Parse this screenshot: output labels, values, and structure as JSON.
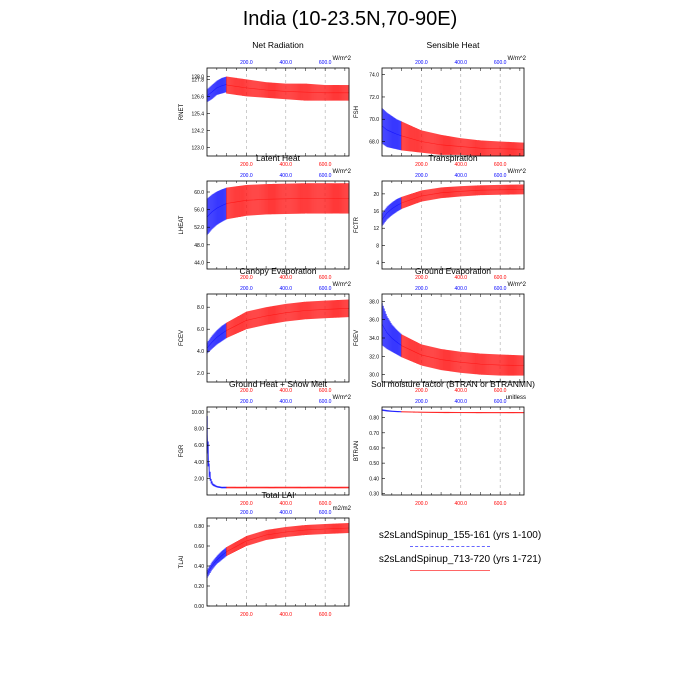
{
  "title": "India (10-23.5N,70-90E)",
  "colors": {
    "blue": "#0000ff",
    "red": "#ff0000",
    "grid": "#aaaaaa"
  },
  "legend": [
    {
      "label": "s2sLandSpinup_155-161 (yrs 1-100)",
      "color": "#6666ff"
    },
    {
      "label": "s2sLandSpinup_713-720 (yrs 1-721)",
      "color": "#ff6666"
    }
  ],
  "chart_data": [
    {
      "type": "line",
      "title": "Net Radiation",
      "unit": "W/m^2",
      "ylabel": "RNET",
      "top_ticks": [
        "200.0",
        "400.0",
        "600.0"
      ],
      "bottom_ticks": [
        "200.0",
        "400.0",
        "600.0"
      ],
      "yticks": [
        "123.0",
        "124.2",
        "125.4",
        "126.6",
        "127.8",
        "128.0"
      ],
      "xlim": [
        0,
        721
      ],
      "ylim": [
        122.4,
        128.6
      ],
      "series": [
        {
          "color": "blue",
          "x": [
            1,
            25,
            50,
            75,
            100
          ],
          "low": [
            126.2,
            126.4,
            126.7,
            126.8,
            126.9
          ],
          "high": [
            127.1,
            127.4,
            127.7,
            127.9,
            128.0
          ]
        },
        {
          "color": "red",
          "x": [
            100,
            200,
            300,
            400,
            500,
            600,
            721
          ],
          "low": [
            126.8,
            126.6,
            126.5,
            126.4,
            126.3,
            126.3,
            126.3
          ],
          "high": [
            128.0,
            127.8,
            127.6,
            127.5,
            127.5,
            127.4,
            127.4
          ]
        }
      ]
    },
    {
      "type": "line",
      "title": "Sensible Heat",
      "unit": "W/m^2",
      "ylabel": "FSH",
      "top_ticks": [
        "200.0",
        "400.0",
        "600.0"
      ],
      "bottom_ticks": [
        "200.0",
        "400.0",
        "600.0"
      ],
      "yticks": [
        "68.0",
        "70.0",
        "72.0",
        "74.0"
      ],
      "xlim": [
        0,
        721
      ],
      "ylim": [
        66.7,
        74.6
      ],
      "series": [
        {
          "color": "blue",
          "x": [
            1,
            25,
            50,
            75,
            100
          ],
          "low": [
            67.8,
            67.5,
            67.4,
            67.3,
            67.2
          ],
          "high": [
            71.0,
            70.6,
            70.3,
            70.0,
            69.8
          ]
        },
        {
          "color": "red",
          "x": [
            100,
            200,
            300,
            400,
            500,
            600,
            721
          ],
          "low": [
            67.2,
            67.0,
            66.8,
            66.8,
            66.7,
            66.7,
            66.7
          ],
          "high": [
            69.8,
            69.0,
            68.6,
            68.3,
            68.1,
            68.0,
            67.9
          ]
        }
      ]
    },
    {
      "type": "line",
      "title": "Latent Heat",
      "unit": "W/m^2",
      "ylabel": "LHEAT",
      "top_ticks": [
        "200.0",
        "400.0",
        "600.0"
      ],
      "bottom_ticks": [
        "200.0",
        "400.0",
        "600.0"
      ],
      "yticks": [
        "44.0",
        "48.0",
        "52.0",
        "56.0",
        "60.0"
      ],
      "xlim": [
        0,
        721
      ],
      "ylim": [
        42.5,
        62.5
      ],
      "series": [
        {
          "color": "blue",
          "x": [
            1,
            25,
            50,
            75,
            100
          ],
          "low": [
            50.2,
            51.5,
            52.5,
            53.2,
            53.8
          ],
          "high": [
            58.5,
            59.4,
            60.1,
            60.6,
            61.0
          ]
        },
        {
          "color": "red",
          "x": [
            100,
            200,
            300,
            400,
            500,
            600,
            721
          ],
          "low": [
            53.8,
            54.6,
            54.9,
            55.0,
            55.1,
            55.1,
            55.1
          ],
          "high": [
            61.0,
            61.6,
            61.8,
            61.9,
            62.0,
            62.0,
            62.0
          ]
        }
      ]
    },
    {
      "type": "line",
      "title": "Transpiration",
      "unit": "W/m^2",
      "ylabel": "FCTR",
      "top_ticks": [
        "200.0",
        "400.0",
        "600.0"
      ],
      "bottom_ticks": [
        "200.0",
        "400.0",
        "600.0"
      ],
      "yticks": [
        "4",
        "8",
        "12",
        "16",
        "20"
      ],
      "xlim": [
        0,
        721
      ],
      "ylim": [
        2.5,
        23
      ],
      "series": [
        {
          "color": "blue",
          "x": [
            1,
            25,
            50,
            75,
            100
          ],
          "low": [
            12.5,
            14.0,
            15.0,
            15.8,
            16.5
          ],
          "high": [
            15.5,
            17.0,
            18.0,
            18.8,
            19.3
          ]
        },
        {
          "color": "red",
          "x": [
            100,
            200,
            300,
            400,
            500,
            600,
            721
          ],
          "low": [
            16.5,
            18.2,
            19.0,
            19.4,
            19.7,
            19.8,
            19.9
          ],
          "high": [
            19.3,
            20.8,
            21.5,
            21.8,
            22.0,
            22.1,
            22.2
          ]
        }
      ]
    },
    {
      "type": "line",
      "title": "Canopy Evaporation",
      "unit": "W/m^2",
      "ylabel": "FCEV",
      "top_ticks": [
        "200.0",
        "400.0",
        "600.0"
      ],
      "bottom_ticks": [
        "200.0",
        "400.0",
        "600.0"
      ],
      "yticks": [
        "2.0",
        "4.0",
        "6.0",
        "8.0"
      ],
      "xlim": [
        0,
        721
      ],
      "ylim": [
        1.2,
        9.2
      ],
      "series": [
        {
          "color": "blue",
          "x": [
            1,
            25,
            50,
            75,
            100
          ],
          "low": [
            3.8,
            4.2,
            4.6,
            4.9,
            5.2
          ],
          "high": [
            4.8,
            5.4,
            5.9,
            6.3,
            6.6
          ]
        },
        {
          "color": "red",
          "x": [
            100,
            200,
            300,
            400,
            500,
            600,
            721
          ],
          "low": [
            5.2,
            6.0,
            6.4,
            6.7,
            6.9,
            7.0,
            7.1
          ],
          "high": [
            6.6,
            7.6,
            8.0,
            8.3,
            8.5,
            8.6,
            8.7
          ]
        }
      ]
    },
    {
      "type": "line",
      "title": "Ground Evaporation",
      "unit": "W/m^2",
      "ylabel": "FGEV",
      "top_ticks": [
        "200.0",
        "400.0",
        "600.0"
      ],
      "bottom_ticks": [
        "200.0",
        "400.0",
        "600.0"
      ],
      "yticks": [
        "30.0",
        "32.0",
        "34.0",
        "36.0",
        "38.0"
      ],
      "xlim": [
        0,
        721
      ],
      "ylim": [
        29.2,
        38.8
      ],
      "series": [
        {
          "color": "blue",
          "x": [
            1,
            25,
            50,
            75,
            100
          ],
          "low": [
            33.2,
            32.8,
            32.5,
            32.2,
            31.9
          ],
          "high": [
            37.8,
            36.4,
            35.5,
            34.9,
            34.4
          ]
        },
        {
          "color": "red",
          "x": [
            100,
            200,
            300,
            400,
            500,
            600,
            721
          ],
          "low": [
            31.9,
            31.0,
            30.5,
            30.2,
            30.0,
            29.9,
            29.9
          ],
          "high": [
            34.4,
            33.3,
            32.8,
            32.5,
            32.3,
            32.2,
            32.1
          ]
        }
      ]
    },
    {
      "type": "line",
      "title": "Ground Heat + Snow Melt",
      "unit": "W/m^2",
      "ylabel": "FGR",
      "top_ticks": [
        "200.0",
        "400.0",
        "600.0"
      ],
      "bottom_ticks": [
        "200.0",
        "400.0",
        "600.0"
      ],
      "yticks": [
        "2.00",
        "4.00",
        "6.00",
        "8.00",
        "10.00"
      ],
      "xlim": [
        0,
        721
      ],
      "ylim": [
        0,
        10.6
      ],
      "series": [
        {
          "color": "blue",
          "x": [
            1,
            10,
            20,
            30,
            50,
            75,
            100
          ],
          "low": [
            5.0,
            2.2,
            1.4,
            1.1,
            0.9,
            0.8,
            0.8
          ],
          "high": [
            9.5,
            4.0,
            2.0,
            1.4,
            1.1,
            1.0,
            1.0
          ]
        },
        {
          "color": "red",
          "x": [
            100,
            200,
            300,
            400,
            500,
            600,
            721
          ],
          "low": [
            0.8,
            0.8,
            0.8,
            0.8,
            0.8,
            0.8,
            0.8
          ],
          "high": [
            1.0,
            1.0,
            1.0,
            1.0,
            1.0,
            1.0,
            1.0
          ]
        }
      ]
    },
    {
      "type": "line",
      "title": "Soil moisture factor (BTRAN or BTRANMN)",
      "unit": "unitless",
      "ylabel": "BTRAN",
      "top_ticks": [
        "200.0",
        "400.0",
        "600.0"
      ],
      "bottom_ticks": [
        "200.0",
        "400.0",
        "600.0"
      ],
      "yticks": [
        "0.30",
        "0.40",
        "0.50",
        "0.60",
        "0.70",
        "0.80"
      ],
      "xlim": [
        0,
        721
      ],
      "ylim": [
        0.29,
        0.87
      ],
      "series": [
        {
          "color": "blue",
          "x": [
            1,
            25,
            50,
            75,
            100
          ],
          "low": [
            0.845,
            0.84,
            0.838,
            0.836,
            0.835
          ],
          "high": [
            0.855,
            0.85,
            0.846,
            0.844,
            0.842
          ]
        },
        {
          "color": "red",
          "x": [
            100,
            200,
            300,
            400,
            500,
            600,
            721
          ],
          "low": [
            0.835,
            0.832,
            0.83,
            0.83,
            0.829,
            0.829,
            0.829
          ],
          "high": [
            0.842,
            0.839,
            0.838,
            0.837,
            0.837,
            0.837,
            0.837
          ]
        }
      ]
    },
    {
      "type": "line",
      "title": "Total LAI",
      "unit": "m2/m2",
      "ylabel": "TLAI",
      "top_ticks": [
        "200.0",
        "400.0",
        "600.0"
      ],
      "bottom_ticks": [
        "200.0",
        "400.0",
        "600.0"
      ],
      "yticks": [
        "0.00",
        "0.20",
        "0.40",
        "0.60",
        "0.80"
      ],
      "xlim": [
        0,
        721
      ],
      "ylim": [
        0.0,
        0.88
      ],
      "series": [
        {
          "color": "blue",
          "x": [
            1,
            25,
            50,
            75,
            100
          ],
          "low": [
            0.28,
            0.36,
            0.42,
            0.46,
            0.5
          ],
          "high": [
            0.36,
            0.44,
            0.5,
            0.55,
            0.59
          ]
        },
        {
          "color": "red",
          "x": [
            100,
            200,
            300,
            400,
            500,
            600,
            721
          ],
          "low": [
            0.5,
            0.6,
            0.66,
            0.69,
            0.71,
            0.72,
            0.73
          ],
          "high": [
            0.59,
            0.7,
            0.76,
            0.79,
            0.81,
            0.82,
            0.83
          ]
        }
      ]
    }
  ]
}
